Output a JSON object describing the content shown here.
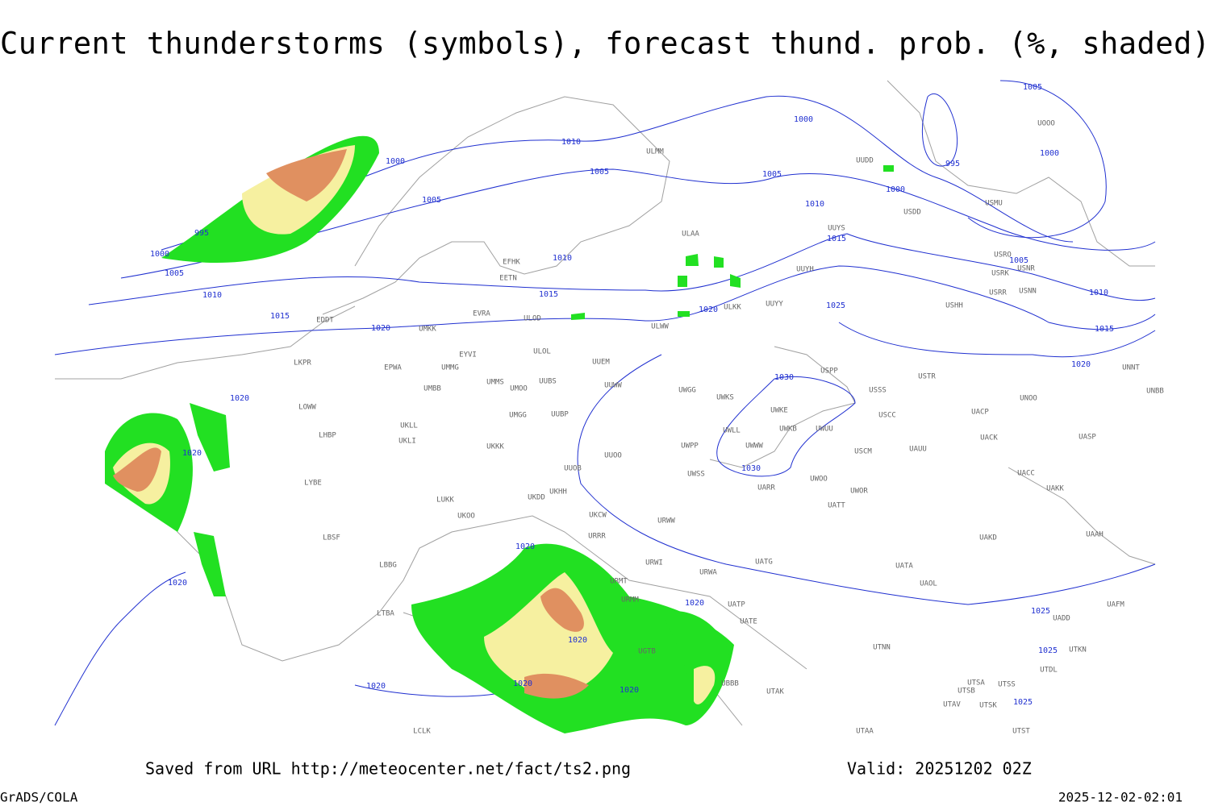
{
  "header": {
    "title": "Current thunderstorms (symbols), forecast thund. prob. (%, shaded)"
  },
  "footer": {
    "source": "Saved from URL http://meteocenter.net/fact/ts2.png",
    "valid": "Valid: 20251202 02Z",
    "software": "GrADS/COLA",
    "timestamp": "2025-12-02-02:01"
  },
  "isobar_labels": [
    "1000",
    "1010",
    "1005",
    "1005",
    "995",
    "1000",
    "1005",
    "1010",
    "1015",
    "1020",
    "1010",
    "1015",
    "1020",
    "1025",
    "1005",
    "1010",
    "1015",
    "1000",
    "1000",
    "995",
    "1005",
    "1000",
    "1005",
    "1010",
    "1015",
    "1020",
    "1030",
    "1030",
    "1020",
    "1020",
    "1020",
    "1020",
    "1020",
    "1020",
    "1020",
    "1020",
    "1020",
    "1025",
    "1025",
    "1025"
  ],
  "stations": [
    "UUYS",
    "UUYH",
    "UUYY",
    "ULWW",
    "EFHK",
    "EETN",
    "EVRA",
    "ULOD",
    "UMKK",
    "ULOL",
    "UUEM",
    "EYVI",
    "EPWA",
    "UMMG",
    "LKPR",
    "UMMS",
    "UMOO",
    "UUBS",
    "UUWW",
    "UWGG",
    "UWKS",
    "UMBB",
    "USSS",
    "USTR",
    "USPP",
    "UWKE",
    "UWKB",
    "UWUU",
    "UWLL",
    "UWWW",
    "USCC",
    "UACP",
    "UACK",
    "UASP",
    "USCM",
    "UAUU",
    "UMGG",
    "UUBP",
    "UKLL",
    "UKLI",
    "LOWW",
    "LHBP",
    "UKKK",
    "UUOO",
    "UUOB",
    "UWPP",
    "UWSS",
    "UARR",
    "UWOO",
    "UWOR",
    "UATT",
    "LYBE",
    "LUKK",
    "UKHH",
    "UKDD",
    "UKOO",
    "UKCW",
    "URWW",
    "LBSF",
    "URRR",
    "UAKD",
    "UAAH",
    "LBBG",
    "URWI",
    "UATG",
    "UATA",
    "UAOL",
    "URMT",
    "URWA",
    "URMM",
    "UATP",
    "UATE",
    "UAFM",
    "UADD",
    "LTBA",
    "UTNN",
    "UTDL",
    "UTSA",
    "UTSS",
    "UTSB",
    "UTAV",
    "UTSK",
    "UGTB",
    "UBBB",
    "UTAK",
    "LCLK",
    "UTAA",
    "UTST",
    "UUDD",
    "USDD",
    "USMU",
    "USRO",
    "USRK",
    "USNR",
    "USRR",
    "USNN",
    "USHH",
    "UNNT",
    "UNBB",
    "UNOO",
    "UAKK",
    "UACC",
    "UOOO",
    "ULMM",
    "ULAA",
    "ULKK",
    "UTKN",
    "EDDT"
  ]
}
